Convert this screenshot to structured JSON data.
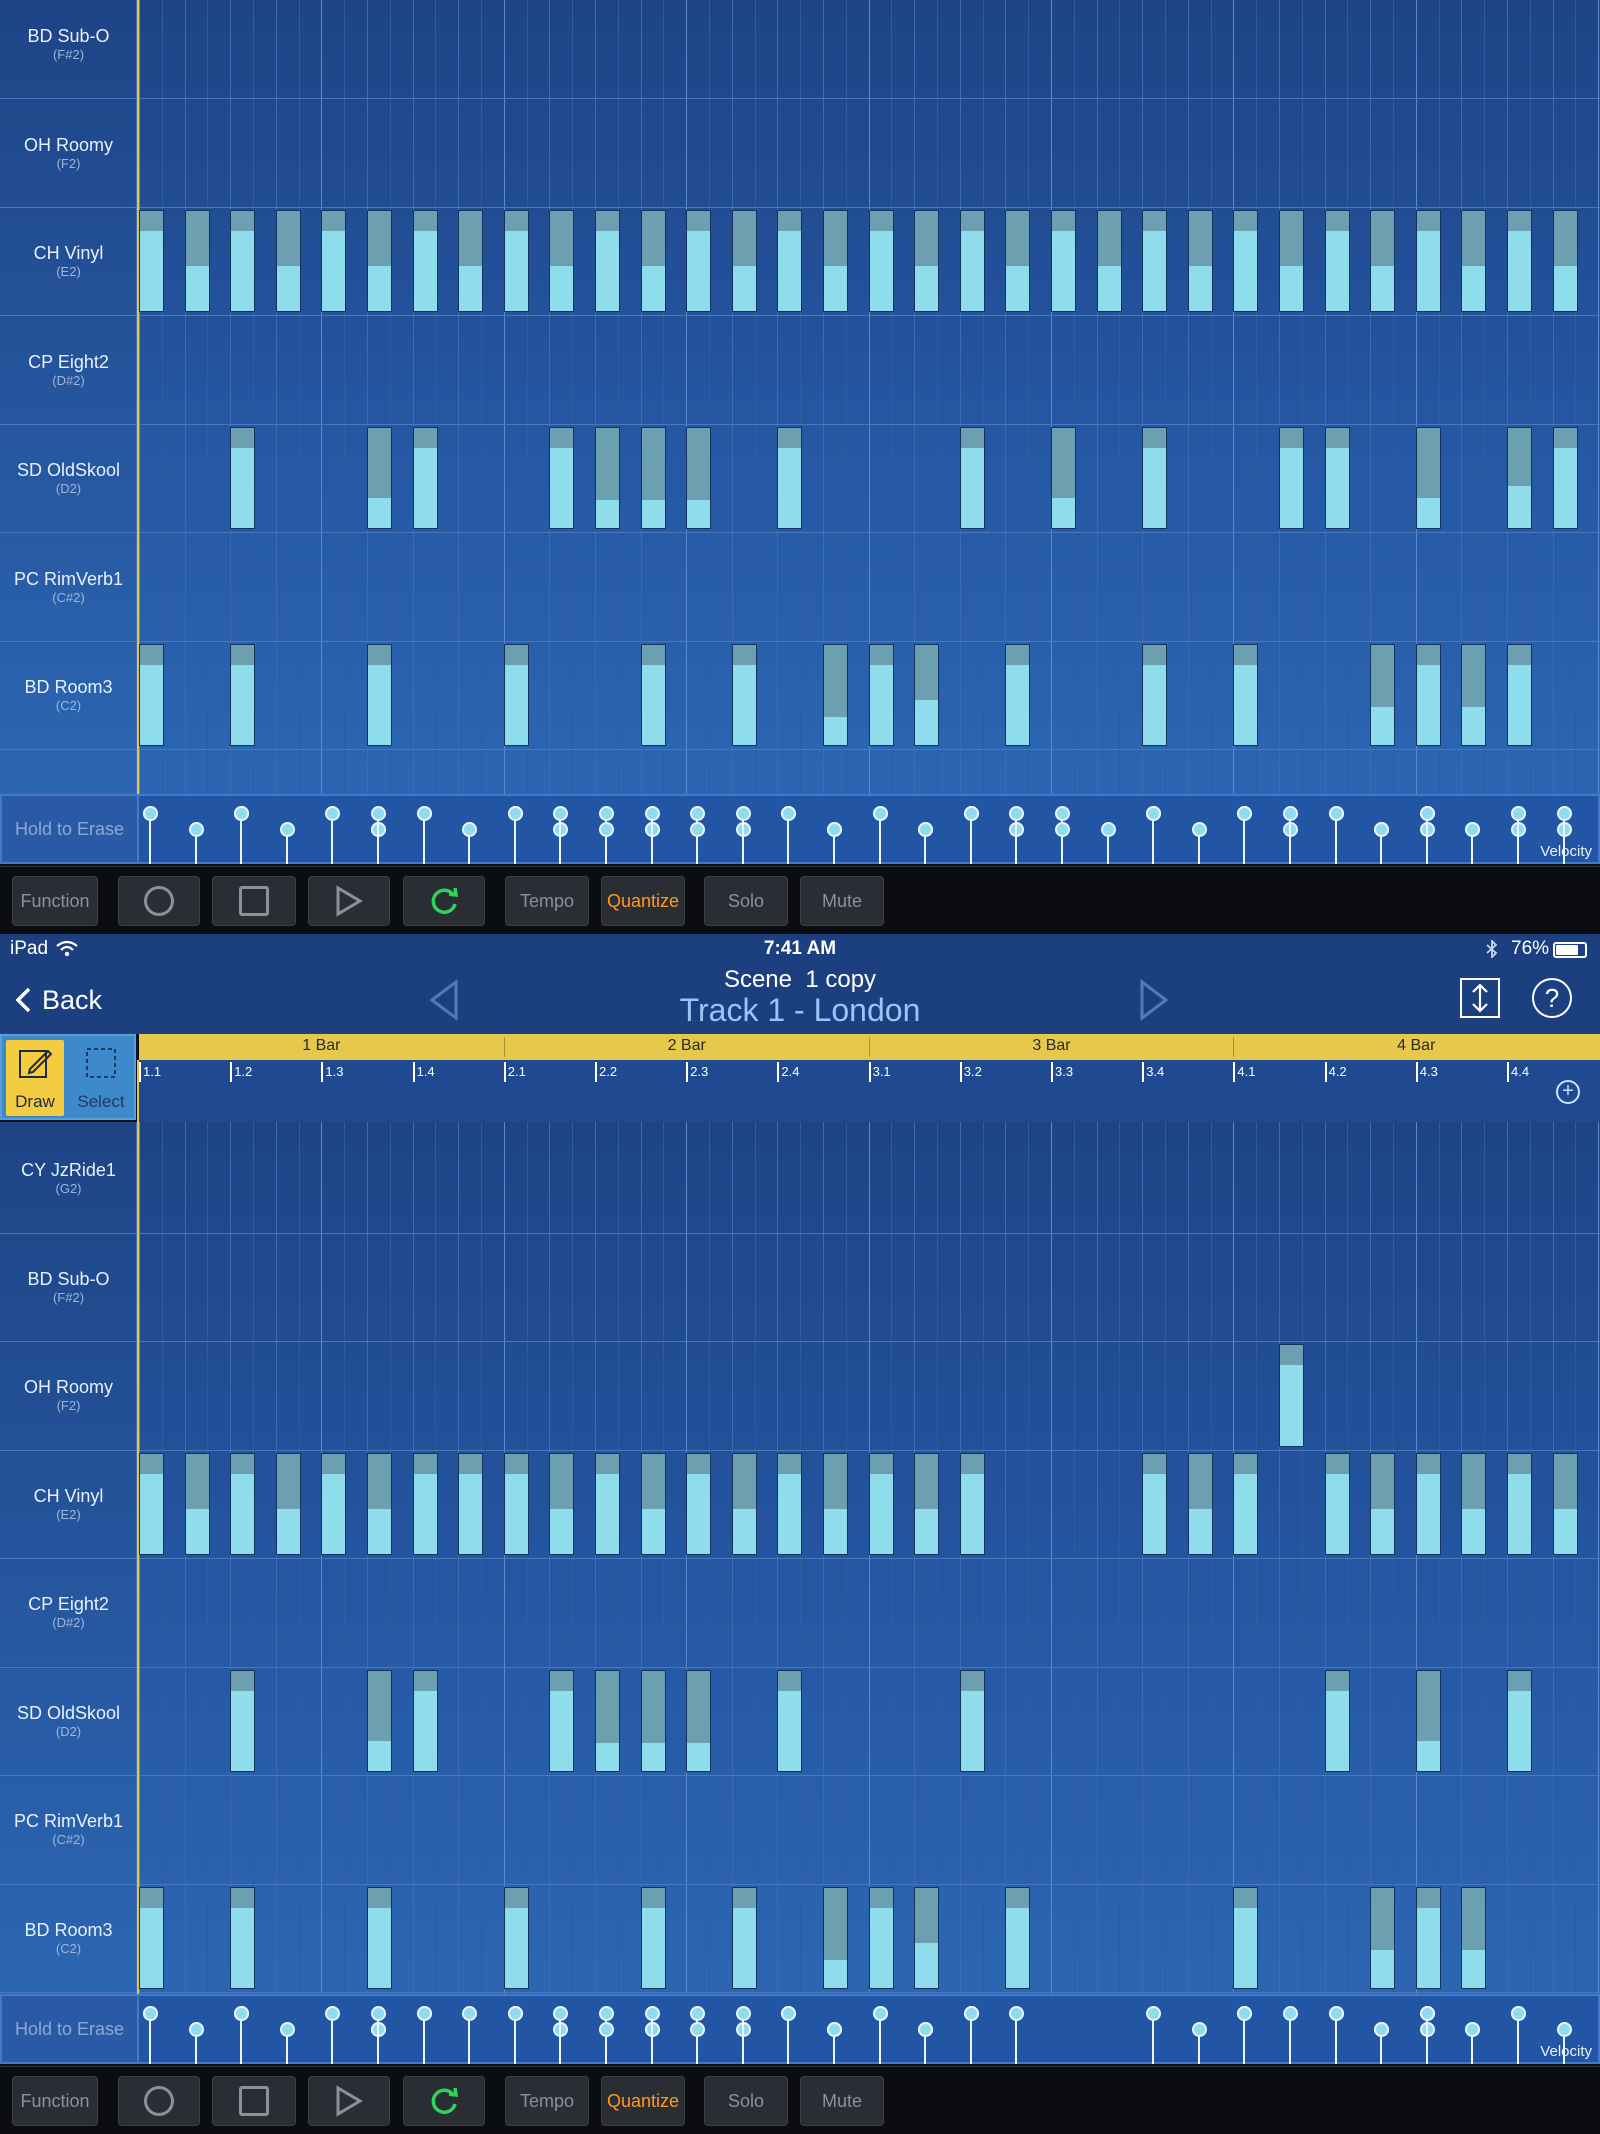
{
  "status_bar": {
    "device": "iPad",
    "time": "7:41 AM",
    "battery": "76%"
  },
  "nav": {
    "back_label": "Back",
    "scene": "Scene  1 copy",
    "track": "Track 1 - London"
  },
  "tools": {
    "draw_label": "Draw",
    "select_label": "Select"
  },
  "ruler": {
    "bars": [
      "1 Bar",
      "2 Bar",
      "3 Bar",
      "4 Bar"
    ],
    "beats": [
      "1.1",
      "1.2",
      "1.3",
      "1.4",
      "2.1",
      "2.2",
      "2.3",
      "2.4",
      "3.1",
      "3.2",
      "3.3",
      "3.4",
      "4.1",
      "4.2",
      "4.3",
      "4.4"
    ]
  },
  "top_lanes": [
    {
      "name": "BD Sub-O",
      "note": "(F#2)"
    },
    {
      "name": "OH Roomy",
      "note": "(F2)"
    },
    {
      "name": "CH Vinyl",
      "note": "(E2)"
    },
    {
      "name": "CP Eight2",
      "note": "(D#2)"
    },
    {
      "name": "SD OldSkool",
      "note": "(D2)"
    },
    {
      "name": "PC RimVerb1",
      "note": "(C#2)"
    },
    {
      "name": "BD Room3",
      "note": "(C2)"
    }
  ],
  "bottom_lanes": [
    {
      "name": "CY JzRide1",
      "note": "(G2)"
    },
    {
      "name": "BD Sub-O",
      "note": "(F#2)"
    },
    {
      "name": "OH Roomy",
      "note": "(F2)"
    },
    {
      "name": "CH Vinyl",
      "note": "(E2)"
    },
    {
      "name": "CP Eight2",
      "note": "(D#2)"
    },
    {
      "name": "SD OldSkool",
      "note": "(D2)"
    },
    {
      "name": "PC RimVerb1",
      "note": "(C#2)"
    },
    {
      "name": "BD Room3",
      "note": "(C2)"
    }
  ],
  "velocity": {
    "erase_label": "Hold to Erase",
    "label": "Velocity"
  },
  "toolbar": {
    "function": "Function",
    "tempo": "Tempo",
    "quantize": "Quantize",
    "solo": "Solo",
    "mute": "Mute"
  },
  "colors": {
    "quantize_active": "#ff9a1e",
    "note": "#8fdcec",
    "ruler": "#e6c94c",
    "loop": "#2fd35a"
  },
  "steps": 32,
  "notes_top": {
    "CH Vinyl": [
      [
        0,
        0.8
      ],
      [
        1,
        0.45
      ],
      [
        2,
        0.8
      ],
      [
        3,
        0.45
      ],
      [
        4,
        0.8
      ],
      [
        5,
        0.45
      ],
      [
        6,
        0.8
      ],
      [
        7,
        0.45
      ],
      [
        8,
        0.8
      ],
      [
        9,
        0.45
      ],
      [
        10,
        0.8
      ],
      [
        11,
        0.45
      ],
      [
        12,
        0.8
      ],
      [
        13,
        0.45
      ],
      [
        14,
        0.8
      ],
      [
        15,
        0.45
      ],
      [
        16,
        0.8
      ],
      [
        17,
        0.45
      ],
      [
        18,
        0.8
      ],
      [
        19,
        0.45
      ],
      [
        20,
        0.8
      ],
      [
        21,
        0.45
      ],
      [
        22,
        0.8
      ],
      [
        23,
        0.45
      ],
      [
        24,
        0.8
      ],
      [
        25,
        0.45
      ],
      [
        26,
        0.8
      ],
      [
        27,
        0.45
      ],
      [
        28,
        0.8
      ],
      [
        29,
        0.45
      ],
      [
        30,
        0.8
      ],
      [
        31,
        0.45
      ]
    ],
    "SD OldSkool": [
      [
        2,
        0.8
      ],
      [
        5,
        0.3
      ],
      [
        6,
        0.8
      ],
      [
        9,
        0.8
      ],
      [
        10,
        0.28
      ],
      [
        11,
        0.28
      ],
      [
        12,
        0.28
      ],
      [
        14,
        0.8
      ],
      [
        18,
        0.8
      ],
      [
        20,
        0.3
      ],
      [
        22,
        0.8
      ],
      [
        25,
        0.8
      ],
      [
        26,
        0.8
      ],
      [
        28,
        0.3
      ],
      [
        30,
        0.42
      ],
      [
        31,
        0.8
      ]
    ],
    "BD Room3": [
      [
        0,
        0.8
      ],
      [
        2,
        0.8
      ],
      [
        5,
        0.8
      ],
      [
        8,
        0.8
      ],
      [
        11,
        0.8
      ],
      [
        13,
        0.8
      ],
      [
        15,
        0.28
      ],
      [
        16,
        0.8
      ],
      [
        17,
        0.45
      ],
      [
        19,
        0.8
      ],
      [
        22,
        0.8
      ],
      [
        24,
        0.8
      ],
      [
        27,
        0.38
      ],
      [
        28,
        0.8
      ],
      [
        29,
        0.38
      ],
      [
        30,
        0.8
      ]
    ]
  },
  "notes_bottom": {
    "OH Roomy": [
      [
        25,
        0.8
      ]
    ],
    "CH Vinyl": [
      [
        0,
        0.8
      ],
      [
        1,
        0.45
      ],
      [
        2,
        0.8
      ],
      [
        3,
        0.45
      ],
      [
        4,
        0.8
      ],
      [
        5,
        0.45
      ],
      [
        6,
        0.8
      ],
      [
        7,
        0.8
      ],
      [
        8,
        0.8
      ],
      [
        9,
        0.45
      ],
      [
        10,
        0.8
      ],
      [
        11,
        0.45
      ],
      [
        12,
        0.8
      ],
      [
        13,
        0.45
      ],
      [
        14,
        0.8
      ],
      [
        15,
        0.45
      ],
      [
        16,
        0.8
      ],
      [
        17,
        0.45
      ],
      [
        18,
        0.8
      ],
      [
        22,
        0.8
      ],
      [
        23,
        0.45
      ],
      [
        24,
        0.8
      ],
      [
        26,
        0.8
      ],
      [
        27,
        0.45
      ],
      [
        28,
        0.8
      ],
      [
        29,
        0.45
      ],
      [
        30,
        0.8
      ],
      [
        31,
        0.45
      ]
    ],
    "SD OldSkool": [
      [
        2,
        0.8
      ],
      [
        5,
        0.3
      ],
      [
        6,
        0.8
      ],
      [
        9,
        0.8
      ],
      [
        10,
        0.28
      ],
      [
        11,
        0.28
      ],
      [
        12,
        0.28
      ],
      [
        14,
        0.8
      ],
      [
        18,
        0.8
      ],
      [
        26,
        0.8
      ],
      [
        28,
        0.3
      ],
      [
        30,
        0.8
      ]
    ],
    "BD Room3": [
      [
        0,
        0.8
      ],
      [
        2,
        0.8
      ],
      [
        5,
        0.8
      ],
      [
        8,
        0.8
      ],
      [
        11,
        0.8
      ],
      [
        13,
        0.8
      ],
      [
        15,
        0.28
      ],
      [
        16,
        0.8
      ],
      [
        17,
        0.45
      ],
      [
        19,
        0.8
      ],
      [
        24,
        0.8
      ],
      [
        27,
        0.38
      ],
      [
        28,
        0.8
      ],
      [
        29,
        0.38
      ]
    ]
  }
}
